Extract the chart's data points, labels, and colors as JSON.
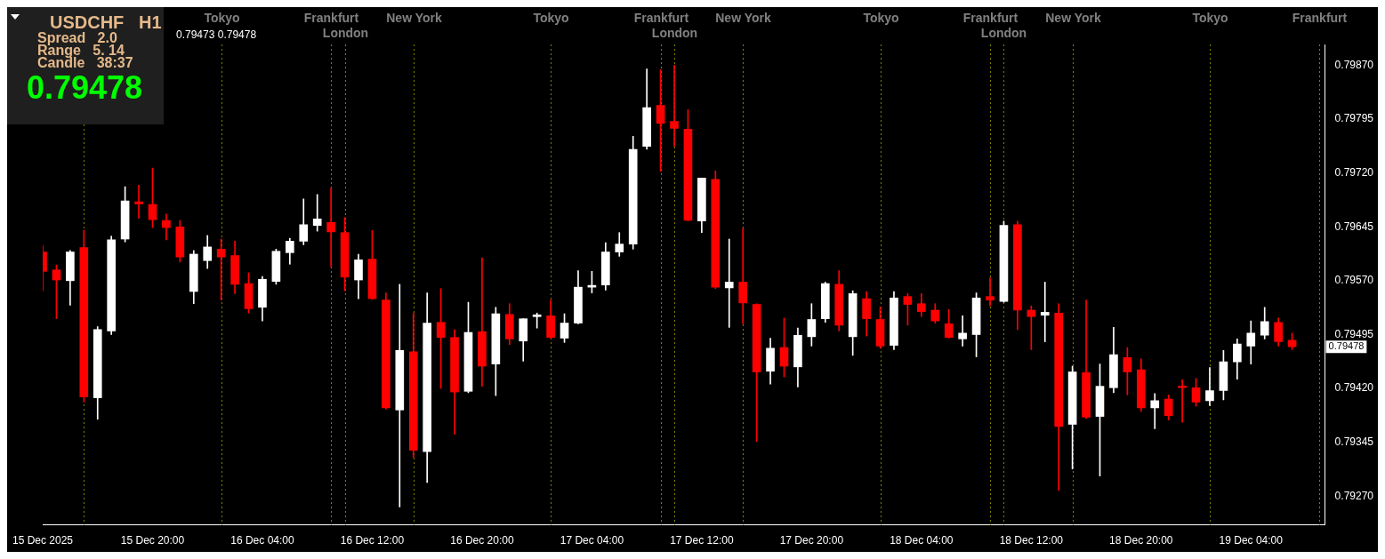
{
  "chart_data": {
    "type": "candlestick",
    "title": "USDCHF   H1",
    "annotations": [
      "Spread   2.0",
      "Range   5. 14",
      "Candle   38:37",
      "0.79478",
      "0.79473 0.79478",
      "0.79478"
    ],
    "x": [
      "2025-12-15T12:00",
      "2025-12-15T13:00",
      "2025-12-15T14:00",
      "2025-12-15T15:00",
      "2025-12-15T16:00",
      "2025-12-15T17:00",
      "2025-12-15T18:00",
      "2025-12-15T19:00",
      "2025-12-15T20:00",
      "2025-12-15T21:00",
      "2025-12-15T22:00",
      "2025-12-15T23:00",
      "2025-12-16T00:00",
      "2025-12-16T01:00",
      "2025-12-16T02:00",
      "2025-12-16T03:00",
      "2025-12-16T04:00",
      "2025-12-16T05:00",
      "2025-12-16T06:00",
      "2025-12-16T07:00",
      "2025-12-16T08:00",
      "2025-12-16T09:00",
      "2025-12-16T10:00",
      "2025-12-16T11:00",
      "2025-12-16T12:00",
      "2025-12-16T13:00",
      "2025-12-16T14:00",
      "2025-12-16T15:00",
      "2025-12-16T16:00",
      "2025-12-16T17:00",
      "2025-12-16T18:00",
      "2025-12-16T19:00",
      "2025-12-16T20:00",
      "2025-12-16T21:00",
      "2025-12-16T22:00",
      "2025-12-16T23:00",
      "2025-12-17T00:00",
      "2025-12-17T01:00",
      "2025-12-17T02:00",
      "2025-12-17T03:00",
      "2025-12-17T04:00",
      "2025-12-17T05:00",
      "2025-12-17T06:00",
      "2025-12-17T07:00",
      "2025-12-17T08:00",
      "2025-12-17T09:00",
      "2025-12-17T10:00",
      "2025-12-17T11:00",
      "2025-12-17T12:00",
      "2025-12-17T13:00",
      "2025-12-17T14:00",
      "2025-12-17T15:00",
      "2025-12-17T16:00",
      "2025-12-17T17:00",
      "2025-12-17T18:00",
      "2025-12-17T19:00",
      "2025-12-17T20:00",
      "2025-12-17T21:00",
      "2025-12-17T22:00",
      "2025-12-17T23:00",
      "2025-12-18T00:00",
      "2025-12-18T01:00",
      "2025-12-18T02:00",
      "2025-12-18T03:00",
      "2025-12-18T04:00",
      "2025-12-18T05:00",
      "2025-12-18T06:00",
      "2025-12-18T07:00",
      "2025-12-18T08:00",
      "2025-12-18T09:00",
      "2025-12-18T10:00",
      "2025-12-18T11:00",
      "2025-12-18T12:00",
      "2025-12-18T13:00",
      "2025-12-18T14:00",
      "2025-12-18T15:00",
      "2025-12-18T16:00",
      "2025-12-18T17:00",
      "2025-12-18T18:00",
      "2025-12-18T19:00",
      "2025-12-18T20:00",
      "2025-12-18T21:00",
      "2025-12-18T22:00",
      "2025-12-18T23:00",
      "2025-12-19T00:00",
      "2025-12-19T01:00",
      "2025-12-19T02:00",
      "2025-12-19T03:00",
      "2025-12-19T04:00",
      "2025-12-19T05:00",
      "2025-12-19T06:00",
      "2025-12-19T07:00"
    ],
    "ohlc": [
      [
        0.7961,
        0.79619,
        0.79556,
        0.79583
      ],
      [
        0.79585,
        0.79592,
        0.79517,
        0.79571
      ],
      [
        0.7957,
        0.79612,
        0.79536,
        0.7961
      ],
      [
        0.79616,
        0.7964,
        0.79401,
        0.79408
      ],
      [
        0.79407,
        0.79506,
        0.79377,
        0.79502
      ],
      [
        0.795,
        0.79632,
        0.79495,
        0.79627
      ],
      [
        0.79628,
        0.79701,
        0.79624,
        0.79681
      ],
      [
        0.7968,
        0.79703,
        0.79657,
        0.79677
      ],
      [
        0.79676,
        0.79727,
        0.79644,
        0.79655
      ],
      [
        0.79654,
        0.79663,
        0.79627,
        0.79644
      ],
      [
        0.79645,
        0.79654,
        0.79596,
        0.79603
      ],
      [
        0.79555,
        0.79612,
        0.79538,
        0.79607
      ],
      [
        0.79598,
        0.79633,
        0.79587,
        0.79617
      ],
      [
        0.79614,
        0.79628,
        0.79543,
        0.79603
      ],
      [
        0.79605,
        0.79625,
        0.79552,
        0.79565
      ],
      [
        0.79566,
        0.79581,
        0.79525,
        0.79531
      ],
      [
        0.79533,
        0.79576,
        0.79514,
        0.79572
      ],
      [
        0.79569,
        0.79614,
        0.79565,
        0.79611
      ],
      [
        0.79609,
        0.79629,
        0.79593,
        0.79625
      ],
      [
        0.79625,
        0.79684,
        0.7962,
        0.79648
      ],
      [
        0.79647,
        0.7969,
        0.79639,
        0.79656
      ],
      [
        0.79651,
        0.79699,
        0.79589,
        0.79638
      ],
      [
        0.79637,
        0.79658,
        0.79556,
        0.79575
      ],
      [
        0.79571,
        0.79607,
        0.79545,
        0.79599
      ],
      [
        0.796,
        0.7964,
        0.79544,
        0.79545
      ],
      [
        0.79543,
        0.79553,
        0.79391,
        0.79393
      ],
      [
        0.7939,
        0.79565,
        0.79255,
        0.79473
      ],
      [
        0.79471,
        0.79525,
        0.79324,
        0.79334
      ],
      [
        0.79332,
        0.79553,
        0.79289,
        0.79511
      ],
      [
        0.79512,
        0.79559,
        0.7942,
        0.79491
      ],
      [
        0.79491,
        0.79502,
        0.79356,
        0.79415
      ],
      [
        0.79416,
        0.7954,
        0.79414,
        0.79498
      ],
      [
        0.79499,
        0.79602,
        0.79423,
        0.79451
      ],
      [
        0.79454,
        0.79533,
        0.7941,
        0.79524
      ],
      [
        0.79523,
        0.79538,
        0.79481,
        0.79489
      ],
      [
        0.79486,
        0.79517,
        0.79458,
        0.79517
      ],
      [
        0.7952,
        0.79525,
        0.79504,
        0.79522
      ],
      [
        0.79521,
        0.79543,
        0.7949,
        0.79491
      ],
      [
        0.7949,
        0.79524,
        0.79484,
        0.79511
      ],
      [
        0.79511,
        0.79584,
        0.7951,
        0.79561
      ],
      [
        0.79561,
        0.79583,
        0.79553,
        0.79563
      ],
      [
        0.79564,
        0.79623,
        0.79557,
        0.7961
      ],
      [
        0.7961,
        0.79637,
        0.79604,
        0.79621
      ],
      [
        0.79621,
        0.79771,
        0.79614,
        0.79753
      ],
      [
        0.79757,
        0.79865,
        0.79753,
        0.79811
      ],
      [
        0.79814,
        0.79864,
        0.79722,
        0.79789
      ],
      [
        0.79792,
        0.7987,
        0.79757,
        0.79782
      ],
      [
        0.79781,
        0.79808,
        0.79653,
        0.79654
      ],
      [
        0.79653,
        0.79713,
        0.79637,
        0.79713
      ],
      [
        0.79711,
        0.79723,
        0.79559,
        0.79561
      ],
      [
        0.7956,
        0.79628,
        0.79505,
        0.79568
      ],
      [
        0.79568,
        0.79643,
        0.7951,
        0.79539
      ],
      [
        0.79537,
        0.79538,
        0.79346,
        0.79443
      ],
      [
        0.79444,
        0.7949,
        0.79426,
        0.79476
      ],
      [
        0.79477,
        0.79518,
        0.79436,
        0.79451
      ],
      [
        0.7945,
        0.79504,
        0.79422,
        0.79494
      ],
      [
        0.79492,
        0.79538,
        0.79479,
        0.79516
      ],
      [
        0.79517,
        0.79568,
        0.79512,
        0.79566
      ],
      [
        0.79565,
        0.79584,
        0.795,
        0.79508
      ],
      [
        0.79492,
        0.79556,
        0.79466,
        0.79552
      ],
      [
        0.79545,
        0.79555,
        0.79493,
        0.79517
      ],
      [
        0.79516,
        0.79533,
        0.79476,
        0.79479
      ],
      [
        0.7948,
        0.79555,
        0.79474,
        0.79546
      ],
      [
        0.79548,
        0.79552,
        0.79508,
        0.79537
      ],
      [
        0.79538,
        0.79552,
        0.7952,
        0.79527
      ],
      [
        0.79529,
        0.79538,
        0.79511,
        0.79514
      ],
      [
        0.7951,
        0.7953,
        0.7949,
        0.79491
      ],
      [
        0.79489,
        0.79521,
        0.79479,
        0.79497
      ],
      [
        0.79495,
        0.79553,
        0.79464,
        0.79546
      ],
      [
        0.79548,
        0.79574,
        0.79535,
        0.79543
      ],
      [
        0.79541,
        0.79653,
        0.7954,
        0.79647
      ],
      [
        0.79648,
        0.79653,
        0.79502,
        0.79529
      ],
      [
        0.79529,
        0.79535,
        0.79474,
        0.7952
      ],
      [
        0.79522,
        0.79568,
        0.79485,
        0.79526
      ],
      [
        0.79525,
        0.79538,
        0.79278,
        0.79367
      ],
      [
        0.7937,
        0.79451,
        0.79308,
        0.79443
      ],
      [
        0.79442,
        0.79543,
        0.79378,
        0.7938
      ],
      [
        0.79381,
        0.79454,
        0.79298,
        0.79423
      ],
      [
        0.79421,
        0.79505,
        0.79414,
        0.79467
      ],
      [
        0.79463,
        0.79477,
        0.79411,
        0.79443
      ],
      [
        0.79446,
        0.79461,
        0.79388,
        0.79393
      ],
      [
        0.79393,
        0.79413,
        0.79364,
        0.79403
      ],
      [
        0.79405,
        0.79411,
        0.79376,
        0.79382
      ],
      [
        0.79423,
        0.79432,
        0.79373,
        0.79421
      ],
      [
        0.79421,
        0.79434,
        0.79395,
        0.79401
      ],
      [
        0.79403,
        0.79449,
        0.79396,
        0.79417
      ],
      [
        0.79417,
        0.79473,
        0.79404,
        0.79457
      ],
      [
        0.79457,
        0.79489,
        0.79433,
        0.79482
      ],
      [
        0.79479,
        0.79514,
        0.79454,
        0.79497
      ],
      [
        0.79494,
        0.79533,
        0.79489,
        0.79513
      ],
      [
        0.79512,
        0.79518,
        0.79479,
        0.79485
      ],
      [
        0.79487,
        0.79497,
        0.79474,
        0.79478
      ]
    ],
    "colors": [
      "#ff0000",
      "#ff0000",
      "#ffffff",
      "#ff0000",
      "#ffffff",
      "#ffffff",
      "#ffffff",
      "#ff0000",
      "#ff0000",
      "#ff0000",
      "#ff0000",
      "#ffffff",
      "#ffffff",
      "#ff0000",
      "#ff0000",
      "#ff0000",
      "#ffffff",
      "#ffffff",
      "#ffffff",
      "#ffffff",
      "#ffffff",
      "#ff0000",
      "#ff0000",
      "#ffffff",
      "#ff0000",
      "#ff0000",
      "#ffffff",
      "#ff0000",
      "#ffffff",
      "#ff0000",
      "#ff0000",
      "#ffffff",
      "#ff0000",
      "#ffffff",
      "#ff0000",
      "#ffffff",
      "#ffffff",
      "#ff0000",
      "#ffffff",
      "#ffffff",
      "#ffffff",
      "#ffffff",
      "#ffffff",
      "#ffffff",
      "#ffffff",
      "#ff0000",
      "#ff0000",
      "#ff0000",
      "#ffffff",
      "#ff0000",
      "#ffffff",
      "#ff0000",
      "#ff0000",
      "#ffffff",
      "#ff0000",
      "#ffffff",
      "#ffffff",
      "#ffffff",
      "#ff0000",
      "#ffffff",
      "#ff0000",
      "#ff0000",
      "#ffffff",
      "#ff0000",
      "#ff0000",
      "#ff0000",
      "#ff0000",
      "#ffffff",
      "#ffffff",
      "#ff0000",
      "#ffffff",
      "#ff0000",
      "#ff0000",
      "#ffffff",
      "#ff0000",
      "#ffffff",
      "#ff0000",
      "#ffffff",
      "#ffffff",
      "#ff0000",
      "#ff0000",
      "#ffffff",
      "#ff0000",
      "#ff0000",
      "#ff0000",
      "#ffffff",
      "#ffffff",
      "#ffffff",
      "#ffffff",
      "#ffffff",
      "#ff0000",
      "#ff0000"
    ],
    "xlim": [
      "2025-12-15T12:00",
      "2025-12-19T09:24"
    ],
    "xticks": [
      {
        "value": "2025-12-15T12:00",
        "label": "15 Dec 2025"
      },
      {
        "value": "2025-12-15T20:00",
        "label": "15 Dec 20:00"
      },
      {
        "value": "2025-12-16T04:00",
        "label": "16 Dec 04:00"
      },
      {
        "value": "2025-12-16T12:00",
        "label": "16 Dec 12:00"
      },
      {
        "value": "2025-12-16T20:00",
        "label": "16 Dec 20:00"
      },
      {
        "value": "2025-12-17T04:00",
        "label": "17 Dec 04:00"
      },
      {
        "value": "2025-12-17T12:00",
        "label": "17 Dec 12:00"
      },
      {
        "value": "2025-12-17T20:00",
        "label": "17 Dec 20:00"
      },
      {
        "value": "2025-12-18T04:00",
        "label": "18 Dec 04:00"
      },
      {
        "value": "2025-12-18T12:00",
        "label": "18 Dec 12:00"
      },
      {
        "value": "2025-12-18T20:00",
        "label": "18 Dec 20:00"
      },
      {
        "value": "2025-12-19T04:00",
        "label": "19 Dec 04:00"
      }
    ],
    "ylim": [
      0.7923,
      0.79899
    ],
    "yticks": [
      {
        "value": 0.7927,
        "label": "0.79270"
      },
      {
        "value": 0.79345,
        "label": "0.79345"
      },
      {
        "value": 0.7942,
        "label": "0.79420"
      },
      {
        "value": 0.79495,
        "label": "0.79495"
      },
      {
        "value": 0.7957,
        "label": "0.79570"
      },
      {
        "value": 0.79645,
        "label": "0.79645"
      },
      {
        "value": 0.7972,
        "label": "0.79720"
      },
      {
        "value": 0.79795,
        "label": "0.79795"
      },
      {
        "value": 0.7987,
        "label": "0.79870"
      }
    ],
    "ref_lines": [
      {
        "axis": "x",
        "value": "2025-12-15T15:00",
        "color": "#808000",
        "line_style": "dotted"
      },
      {
        "axis": "x",
        "value": "2025-12-16T01:00",
        "label": "Tokyo",
        "color": "#808000",
        "line_style": "dotted"
      },
      {
        "axis": "x",
        "value": "2025-12-16T09:00",
        "label": "Frankfurt",
        "color": "#808000",
        "line_style": "dotted"
      },
      {
        "axis": "x",
        "value": "2025-12-16T10:00",
        "label": "London",
        "color": "#808000",
        "line_style": "dotted"
      },
      {
        "axis": "x",
        "value": "2025-12-16T15:00",
        "label": "New York",
        "color": "#808000",
        "line_style": "dotted"
      },
      {
        "axis": "x",
        "value": "2025-12-17T01:00",
        "label": "Tokyo",
        "color": "#808000",
        "line_style": "dotted"
      },
      {
        "axis": "x",
        "value": "2025-12-17T09:00",
        "label": "Frankfurt",
        "color": "#808000",
        "line_style": "dotted"
      },
      {
        "axis": "x",
        "value": "2025-12-17T10:00",
        "label": "London",
        "color": "#808000",
        "line_style": "dotted"
      },
      {
        "axis": "x",
        "value": "2025-12-17T15:00",
        "label": "New York",
        "color": "#808000",
        "line_style": "dotted"
      },
      {
        "axis": "x",
        "value": "2025-12-18T01:00",
        "label": "Tokyo",
        "color": "#808000",
        "line_style": "dotted"
      },
      {
        "axis": "x",
        "value": "2025-12-18T09:00",
        "label": "Frankfurt",
        "color": "#808000",
        "line_style": "dotted"
      },
      {
        "axis": "x",
        "value": "2025-12-18T10:00",
        "label": "London",
        "color": "#808000",
        "line_style": "dotted"
      },
      {
        "axis": "x",
        "value": "2025-12-18T15:00",
        "label": "New York",
        "color": "#808000",
        "line_style": "dotted"
      },
      {
        "axis": "x",
        "value": "2025-12-19T01:00",
        "label": "Tokyo",
        "color": "#808000",
        "line_style": "dotted"
      },
      {
        "axis": "x",
        "value": "2025-12-19T09:00",
        "label": "Frankfurt",
        "color": "#808000",
        "line_style": "dotted"
      }
    ],
    "grid": false,
    "legend": false
  }
}
